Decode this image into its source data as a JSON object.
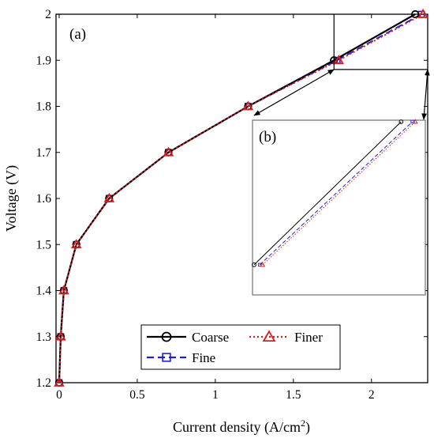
{
  "chart_data": {
    "type": "line",
    "xlabel": "Current density (A/cm",
    "xlabel_sup": "2",
    "xlabel_close": ")",
    "ylabel": "Voltage (V)",
    "xlim": [
      -0.02,
      2.36
    ],
    "ylim": [
      1.2,
      2.0
    ],
    "xticks": [
      0,
      0.5,
      1,
      1.5,
      2
    ],
    "xtick_labels": [
      "0",
      "0.5",
      "1",
      "1.5",
      "2"
    ],
    "yticks": [
      1.2,
      1.3,
      1.4,
      1.5,
      1.6,
      1.7,
      1.8,
      1.9,
      2.0
    ],
    "ytick_labels": [
      "1.2",
      "1.3",
      "1.4",
      "1.5",
      "1.6",
      "1.7",
      "1.8",
      "1.9",
      "2"
    ],
    "grid": false,
    "legend_position": "bottom-center",
    "series": [
      {
        "name": "Coarse",
        "color": "#000000",
        "style": "solid",
        "marker": "circle",
        "x": [
          0.0,
          0.01,
          0.03,
          0.11,
          0.32,
          0.7,
          1.21,
          1.76,
          2.28
        ],
        "y": [
          1.2,
          1.3,
          1.4,
          1.5,
          1.6,
          1.7,
          1.8,
          1.9,
          2.0
        ]
      },
      {
        "name": "Fine",
        "color": "#1f1fd6",
        "style": "dash",
        "marker": "square",
        "x": [
          0.0,
          0.01,
          0.03,
          0.11,
          0.32,
          0.7,
          1.21,
          1.78,
          2.32
        ],
        "y": [
          1.2,
          1.3,
          1.4,
          1.5,
          1.6,
          1.7,
          1.8,
          1.9,
          2.0
        ]
      },
      {
        "name": "Finer",
        "color": "#d62020",
        "style": "dot",
        "marker": "triangle",
        "x": [
          0.0,
          0.01,
          0.03,
          0.11,
          0.32,
          0.7,
          1.21,
          1.79,
          2.33
        ],
        "y": [
          1.2,
          1.3,
          1.4,
          1.5,
          1.6,
          1.7,
          1.8,
          1.9,
          2.0
        ]
      }
    ],
    "annotations": {
      "panel_a": "(a)",
      "panel_b": "(b)",
      "zoom_region_x": [
        1.76,
        2.36
      ],
      "zoom_region_y": [
        1.88,
        2.0
      ]
    }
  }
}
